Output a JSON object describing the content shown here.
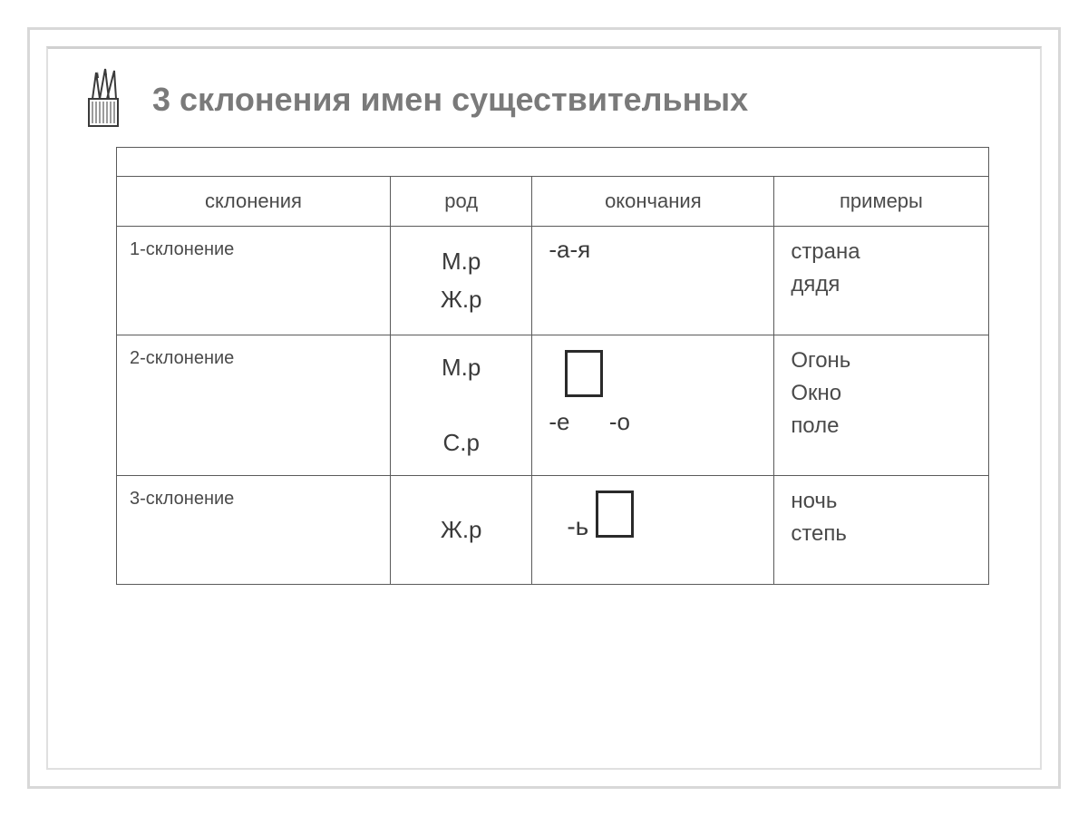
{
  "title": "3 склонения имен существительных",
  "headers": {
    "c1": "склонения",
    "c2": "род",
    "c3": "окончания",
    "c4": "примеры"
  },
  "rows": [
    {
      "label": "1-склонение",
      "gender": "М.р\nЖ.р",
      "ending_text": "-а-я",
      "examples": "страна\nдядя"
    },
    {
      "label": "2-склонение",
      "gender": "М.р\n\nС.р",
      "ending_bottom": "-е      -о",
      "examples": "Огонь\nОкно\nполе"
    },
    {
      "label": "3-склонение",
      "gender": "Ж.р",
      "ending_prefix": "-ь",
      "examples": "ночь\nстепь"
    }
  ],
  "colors": {
    "title": "#7a7a7a",
    "border": "#5a5a5a",
    "text": "#4a4a4a",
    "frame": "#d8d8d8",
    "box": "#2a2a2a"
  }
}
